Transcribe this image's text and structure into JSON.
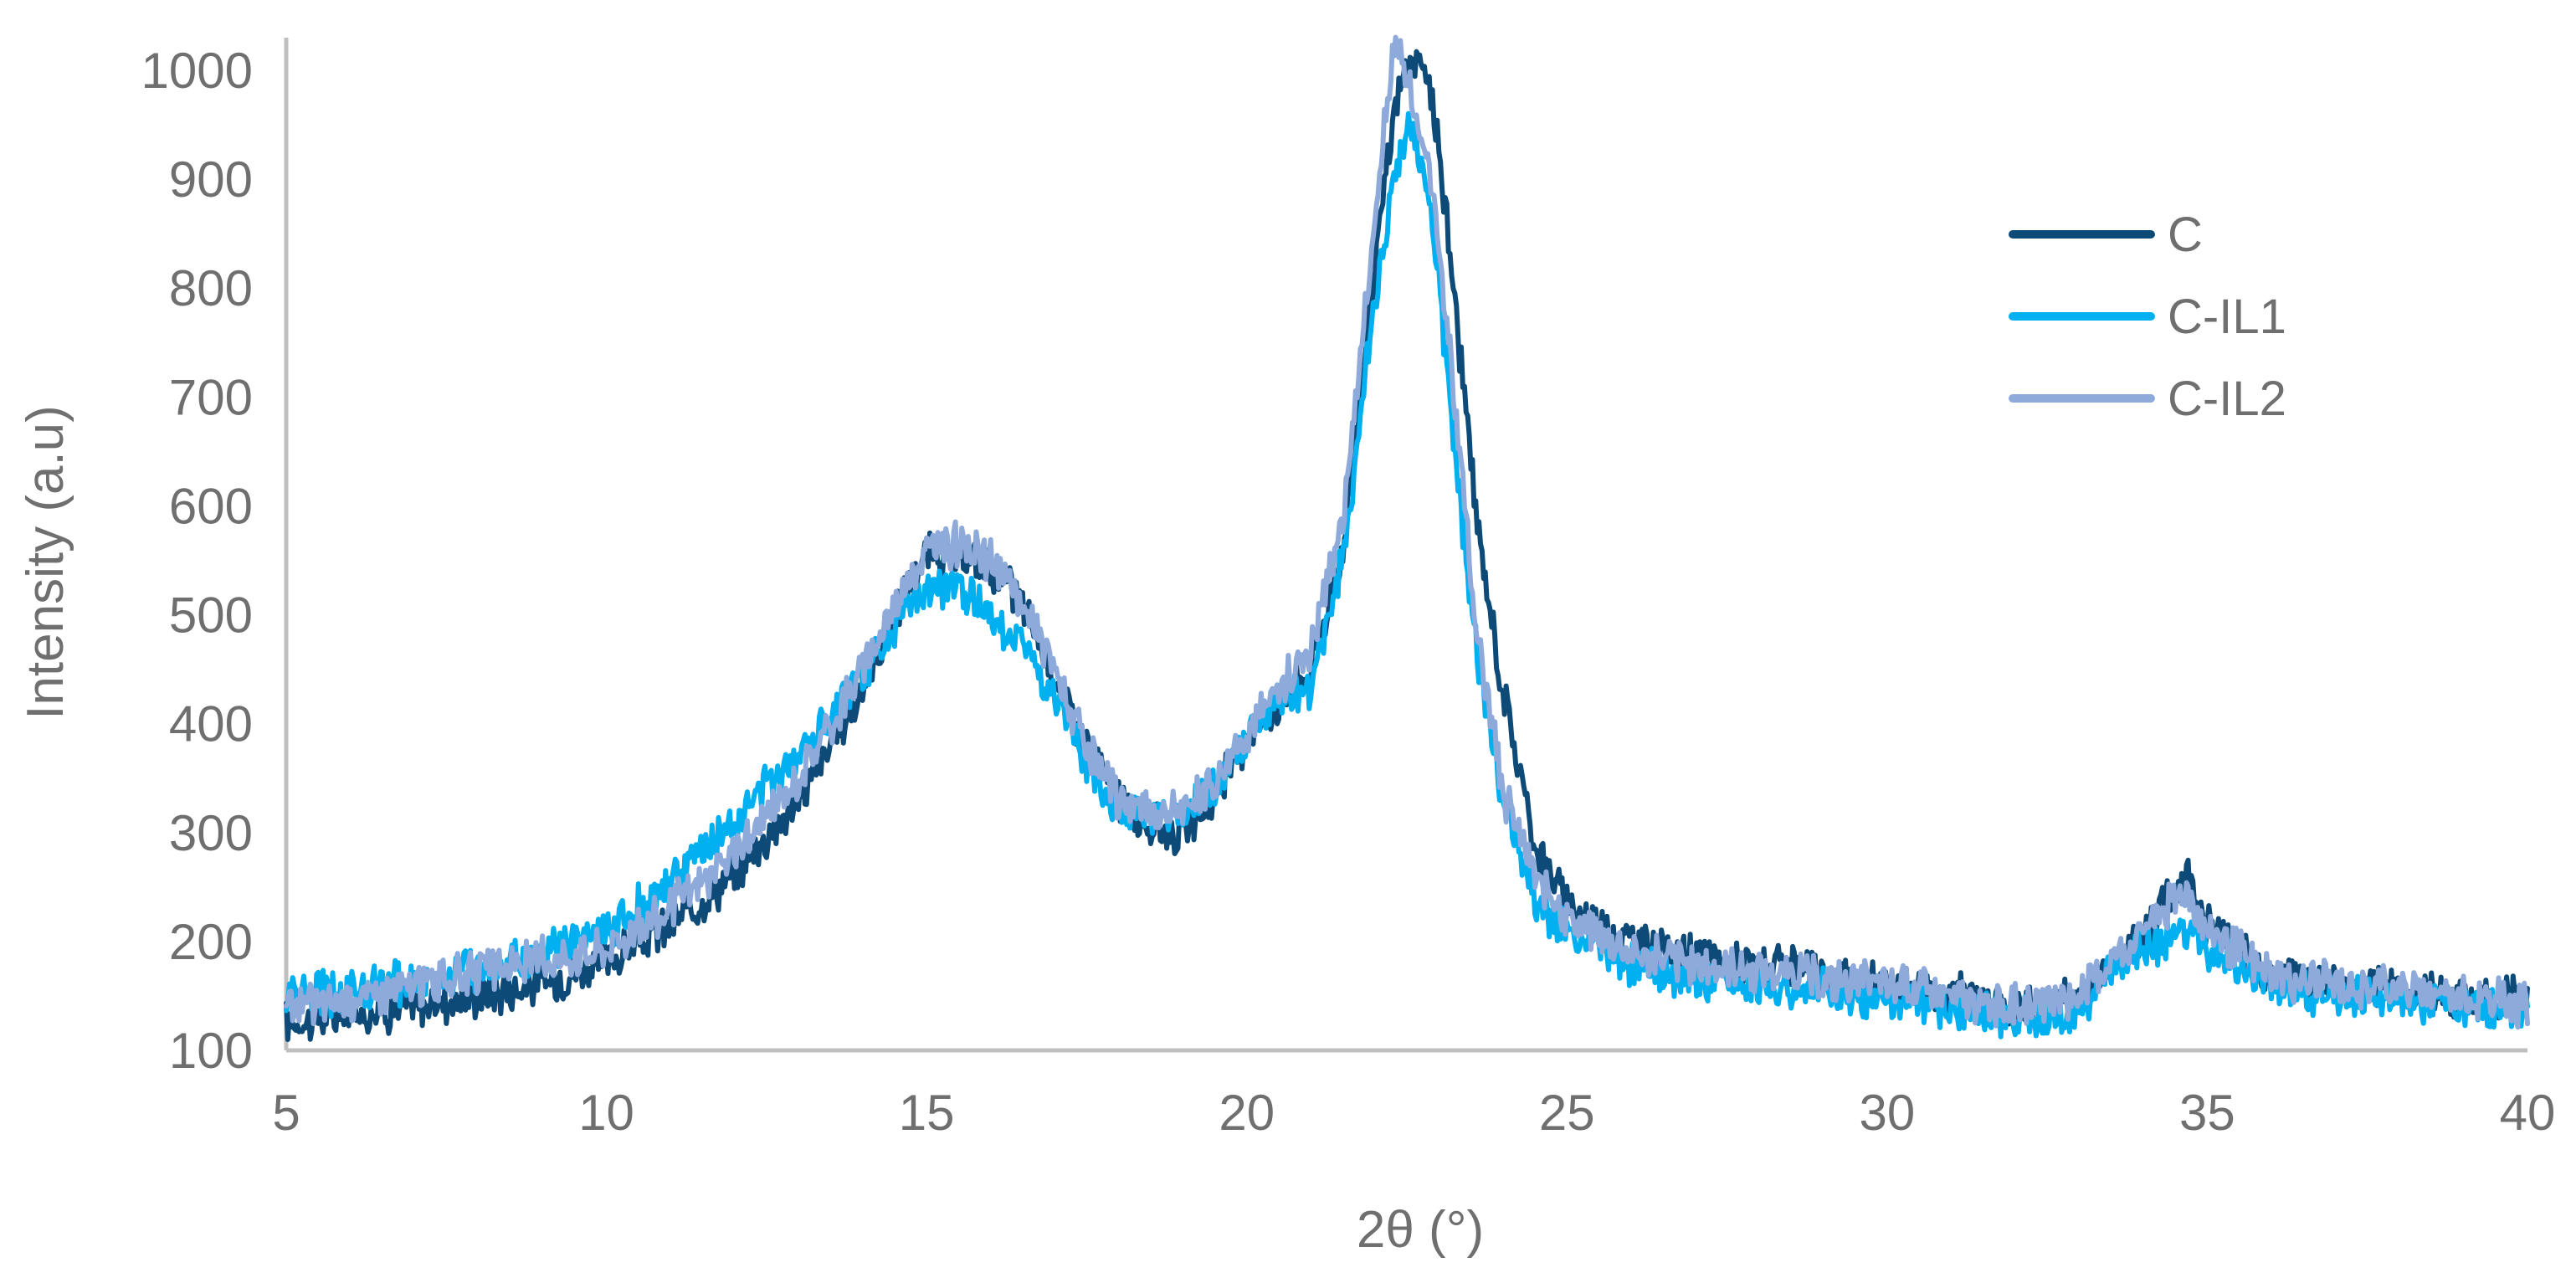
{
  "chart_data": {
    "type": "line",
    "title": "",
    "xlabel": "2θ (°)",
    "ylabel": "Intensity (a.u)",
    "xlim": [
      5,
      40
    ],
    "ylim": [
      100,
      1030
    ],
    "x_ticks": [
      5,
      10,
      15,
      20,
      25,
      30,
      35,
      40
    ],
    "y_ticks": [
      100,
      200,
      300,
      400,
      500,
      600,
      700,
      800,
      900,
      1000
    ],
    "grid": false,
    "legend_position": "top-right",
    "series": [
      {
        "name": "C",
        "color": "#0d4a78",
        "points": [
          [
            5,
            125
          ],
          [
            6,
            133
          ],
          [
            7,
            140
          ],
          [
            8,
            150
          ],
          [
            9,
            162
          ],
          [
            10,
            180
          ],
          [
            11,
            215
          ],
          [
            12,
            262
          ],
          [
            13,
            330
          ],
          [
            14,
            430
          ],
          [
            14.5,
            500
          ],
          [
            15,
            555
          ],
          [
            15.5,
            550
          ],
          [
            16,
            545
          ],
          [
            16.5,
            510
          ],
          [
            17,
            445
          ],
          [
            17.5,
            380
          ],
          [
            18,
            330
          ],
          [
            18.5,
            305
          ],
          [
            19,
            300
          ],
          [
            19.5,
            330
          ],
          [
            20,
            390
          ],
          [
            20.5,
            420
          ],
          [
            21,
            450
          ],
          [
            21.5,
            560
          ],
          [
            22,
            820
          ],
          [
            22.3,
            960
          ],
          [
            22.5,
            1005
          ],
          [
            22.8,
            1000
          ],
          [
            23,
            930
          ],
          [
            23.3,
            760
          ],
          [
            23.6,
            580
          ],
          [
            24,
            430
          ],
          [
            24.5,
            290
          ],
          [
            25,
            235
          ],
          [
            26,
            200
          ],
          [
            27,
            185
          ],
          [
            28,
            178
          ],
          [
            29,
            168
          ],
          [
            30,
            160
          ],
          [
            31,
            155
          ],
          [
            32,
            140
          ],
          [
            33,
            150
          ],
          [
            34,
            210
          ],
          [
            34.7,
            262
          ],
          [
            35,
            215
          ],
          [
            36,
            170
          ],
          [
            37,
            160
          ],
          [
            38,
            155
          ],
          [
            39,
            150
          ],
          [
            40,
            145
          ]
        ]
      },
      {
        "name": "C-IL1",
        "color": "#00b0f0",
        "points": [
          [
            5,
            150
          ],
          [
            6,
            155
          ],
          [
            7,
            165
          ],
          [
            8,
            175
          ],
          [
            9,
            188
          ],
          [
            10,
            210
          ],
          [
            11,
            255
          ],
          [
            12,
            310
          ],
          [
            13,
            375
          ],
          [
            14,
            445
          ],
          [
            14.5,
            490
          ],
          [
            15,
            520
          ],
          [
            15.5,
            525
          ],
          [
            16,
            500
          ],
          [
            16.5,
            475
          ],
          [
            17,
            420
          ],
          [
            17.5,
            360
          ],
          [
            18,
            320
          ],
          [
            18.5,
            310
          ],
          [
            19,
            315
          ],
          [
            19.5,
            340
          ],
          [
            20,
            385
          ],
          [
            20.5,
            420
          ],
          [
            21,
            435
          ],
          [
            21.5,
            550
          ],
          [
            22,
            790
          ],
          [
            22.3,
            900
          ],
          [
            22.5,
            950
          ],
          [
            22.8,
            900
          ],
          [
            23,
            800
          ],
          [
            23.3,
            620
          ],
          [
            23.6,
            460
          ],
          [
            24,
            330
          ],
          [
            24.5,
            240
          ],
          [
            25,
            205
          ],
          [
            26,
            180
          ],
          [
            27,
            165
          ],
          [
            28,
            158
          ],
          [
            29,
            155
          ],
          [
            30,
            148
          ],
          [
            31,
            138
          ],
          [
            32,
            128
          ],
          [
            33,
            138
          ],
          [
            34,
            195
          ],
          [
            34.7,
            210
          ],
          [
            35,
            190
          ],
          [
            36,
            160
          ],
          [
            37,
            150
          ],
          [
            38,
            145
          ],
          [
            39,
            140
          ],
          [
            40,
            135
          ]
        ]
      },
      {
        "name": "C-IL2",
        "color": "#8eaadb",
        "points": [
          [
            5,
            140
          ],
          [
            6,
            148
          ],
          [
            7,
            160
          ],
          [
            8,
            172
          ],
          [
            9,
            183
          ],
          [
            10,
            195
          ],
          [
            11,
            230
          ],
          [
            12,
            280
          ],
          [
            13,
            350
          ],
          [
            14,
            450
          ],
          [
            14.5,
            510
          ],
          [
            15,
            560
          ],
          [
            15.5,
            565
          ],
          [
            16,
            550
          ],
          [
            16.5,
            510
          ],
          [
            17,
            450
          ],
          [
            17.5,
            375
          ],
          [
            18,
            330
          ],
          [
            18.5,
            320
          ],
          [
            19,
            320
          ],
          [
            19.5,
            345
          ],
          [
            20,
            395
          ],
          [
            20.5,
            430
          ],
          [
            21,
            470
          ],
          [
            21.5,
            590
          ],
          [
            22,
            860
          ],
          [
            22.3,
            1025
          ],
          [
            22.5,
            990
          ],
          [
            22.8,
            930
          ],
          [
            23,
            840
          ],
          [
            23.3,
            660
          ],
          [
            23.6,
            480
          ],
          [
            24,
            340
          ],
          [
            24.5,
            260
          ],
          [
            25,
            225
          ],
          [
            26,
            190
          ],
          [
            27,
            178
          ],
          [
            28,
            175
          ],
          [
            29,
            165
          ],
          [
            30,
            160
          ],
          [
            31,
            150
          ],
          [
            32,
            140
          ],
          [
            33,
            150
          ],
          [
            34,
            210
          ],
          [
            34.7,
            250
          ],
          [
            35,
            210
          ],
          [
            36,
            170
          ],
          [
            37,
            160
          ],
          [
            38,
            158
          ],
          [
            39,
            150
          ],
          [
            40,
            140
          ]
        ]
      }
    ]
  }
}
